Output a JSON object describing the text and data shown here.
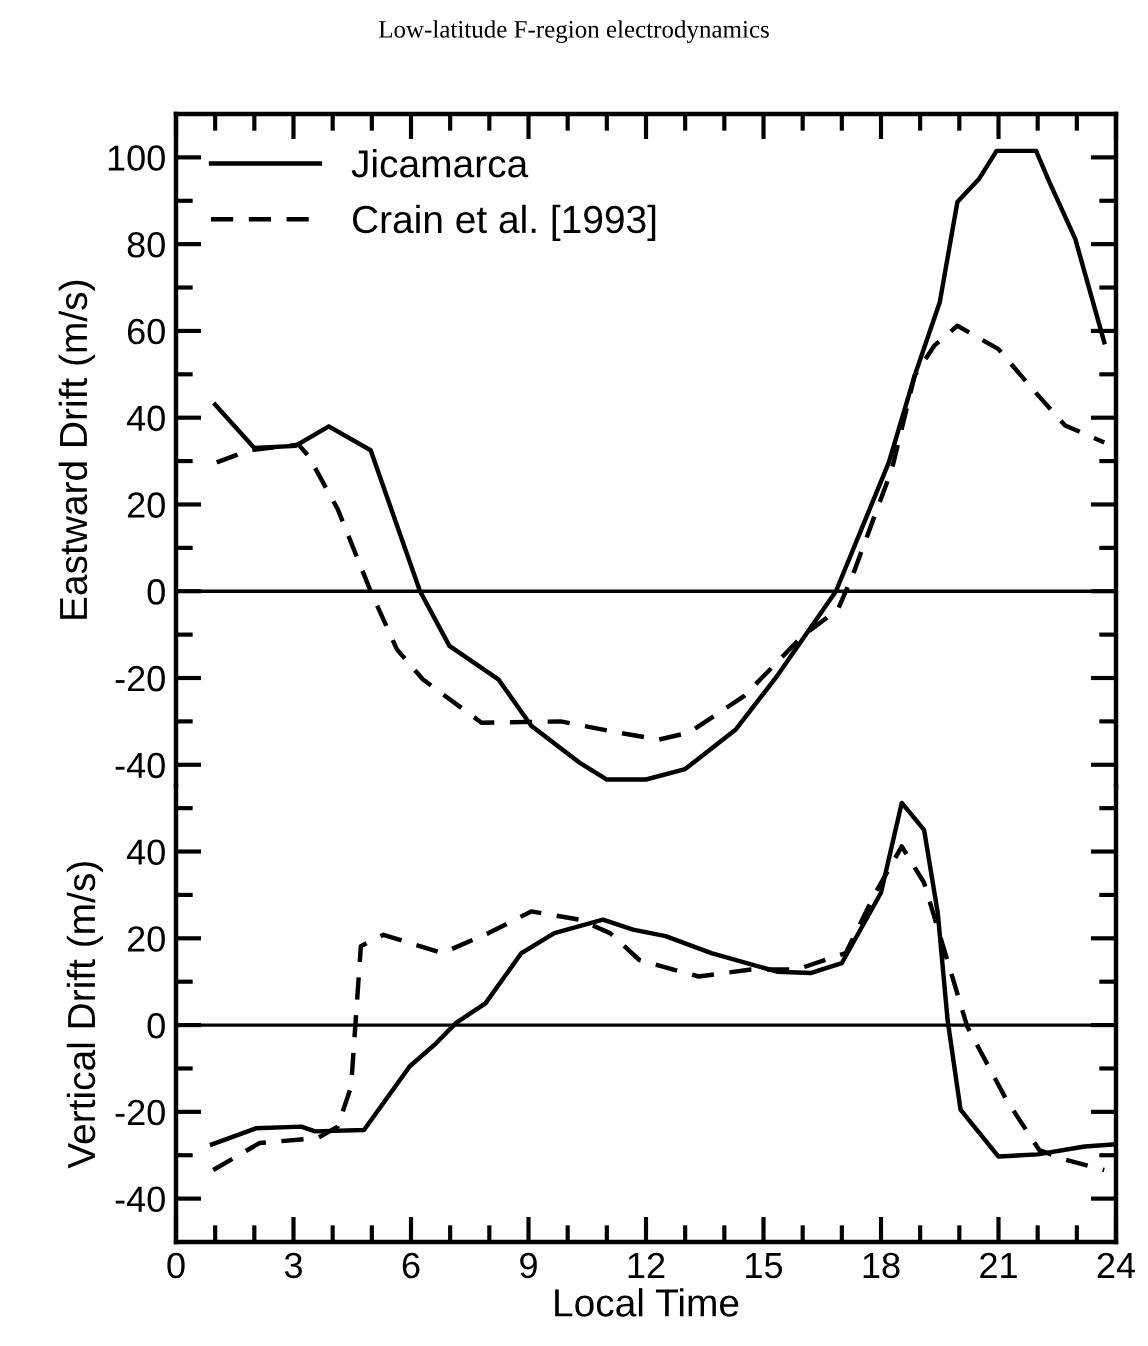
{
  "chart_data": [
    {
      "type": "line",
      "title": "Low-latitude F-region electrodynamics",
      "ylabel": "Eastward Drift (m/s)",
      "xlim": [
        0,
        24
      ],
      "xticks": [
        0,
        {
          "value": 1,
          "label": null
        },
        {
          "value": 2,
          "label": null
        },
        3,
        {
          "value": 4,
          "label": null
        },
        {
          "value": 5,
          "label": null
        },
        6,
        {
          "value": 7,
          "label": null
        },
        {
          "value": 8,
          "label": null
        },
        9,
        {
          "value": 10,
          "label": null
        },
        {
          "value": 11,
          "label": null
        },
        12,
        {
          "value": 13,
          "label": null
        },
        {
          "value": 14,
          "label": null
        },
        15,
        {
          "value": 16,
          "label": null
        },
        {
          "value": 17,
          "label": null
        },
        18,
        {
          "value": 19,
          "label": null
        },
        {
          "value": 20,
          "label": null
        },
        21,
        {
          "value": 22,
          "label": null
        },
        {
          "value": 23,
          "label": null
        },
        24
      ],
      "ylim": [
        -45,
        110
      ],
      "yticks": [
        -40,
        {
          "value": -30,
          "label": null
        },
        -20,
        {
          "value": -10,
          "label": null
        },
        0,
        {
          "value": 10,
          "label": null
        },
        20,
        {
          "value": 30,
          "label": null
        },
        40,
        {
          "value": 50,
          "label": null
        },
        60,
        {
          "value": 70,
          "label": null
        },
        80,
        {
          "value": 90,
          "label": null
        },
        100
      ],
      "tick_labels": "y",
      "grid": false,
      "legend": "top left",
      "ref_lines": [
        {
          "axis": "y",
          "value": 0,
          "color": "#000000"
        }
      ],
      "series": [
        {
          "name": "Jicamarca",
          "color": "#000000",
          "line_style": "solid",
          "x": [
            1,
            2,
            3.05,
            3.9,
            4.97,
            6.23,
            6.98,
            8.23,
            9.07,
            10.3,
            11.0,
            12.0,
            13.0,
            14.3,
            15.35,
            16.85,
            18.2,
            18.86,
            19.5,
            19.95,
            20.5,
            20.95,
            21.96,
            22.3,
            22.96,
            23.7
          ],
          "values": [
            43,
            33,
            33.5,
            38,
            32.5,
            0,
            -12.6,
            -20.3,
            -31,
            -39.5,
            -43.4,
            -43.4,
            -41,
            -31.8,
            -19.5,
            0,
            29.7,
            49.7,
            66.6,
            89.7,
            95,
            101.5,
            101.5,
            94.3,
            81.2,
            57.4
          ]
        },
        {
          "name": "Crain et al. [1993]",
          "color": "#000000",
          "line_style": "dashed",
          "x": [
            1.04,
            1.87,
            3.13,
            3.38,
            4.13,
            4.97,
            5.64,
            6.3,
            7.8,
            9.82,
            11.3,
            12.33,
            13.1,
            14.5,
            16.0,
            16.9,
            17.27,
            18.28,
            18.86,
            19.36,
            19.95,
            21.0,
            21.87,
            22.7,
            23.7
          ],
          "values": [
            29.7,
            32.5,
            33.8,
            31.2,
            18.9,
            0,
            -13.4,
            -20.3,
            -30.3,
            -30,
            -32.6,
            -34.2,
            -32.6,
            -24.2,
            -10.3,
            -4.2,
            3.5,
            28.2,
            49.7,
            56.6,
            61.2,
            55.8,
            46.6,
            38.2,
            34.3
          ]
        }
      ]
    },
    {
      "type": "line",
      "ylabel": "Vertical Drift (m/s)",
      "xlabel": "Local Time",
      "xlim": [
        0,
        24
      ],
      "xticks": [
        0,
        {
          "value": 1,
          "label": null
        },
        {
          "value": 2,
          "label": null
        },
        3,
        {
          "value": 4,
          "label": null
        },
        {
          "value": 5,
          "label": null
        },
        6,
        {
          "value": 7,
          "label": null
        },
        {
          "value": 8,
          "label": null
        },
        9,
        {
          "value": 10,
          "label": null
        },
        {
          "value": 11,
          "label": null
        },
        12,
        {
          "value": 13,
          "label": null
        },
        {
          "value": 14,
          "label": null
        },
        15,
        {
          "value": 16,
          "label": null
        },
        {
          "value": 17,
          "label": null
        },
        18,
        {
          "value": 19,
          "label": null
        },
        {
          "value": 20,
          "label": null
        },
        21,
        {
          "value": 22,
          "label": null
        },
        {
          "value": 23,
          "label": null
        },
        24
      ],
      "ylim": [
        -50,
        55
      ],
      "yticks": [
        -40,
        {
          "value": -30,
          "label": null
        },
        -20,
        {
          "value": -10,
          "label": null
        },
        0,
        {
          "value": 10,
          "label": null
        },
        20,
        {
          "value": 30,
          "label": null
        },
        40,
        {
          "value": 50,
          "label": null
        }
      ],
      "grid": false,
      "ref_lines": [
        {
          "axis": "y",
          "value": 0,
          "color": "#000000"
        }
      ],
      "series": [
        {
          "color": "#000000",
          "line_style": "solid",
          "x": [
            0.92,
            2.04,
            3.2,
            3.55,
            4.8,
            5.97,
            6.64,
            7.15,
            7.9,
            8.82,
            9.66,
            10.9,
            11.67,
            12.5,
            13.67,
            15.35,
            16.2,
            17.0,
            18.0,
            18.53,
            19.1,
            19.45,
            19.7,
            20.03,
            21.0,
            22.0,
            23.2,
            23.95
          ],
          "values": [
            -27.5,
            -23.8,
            -23.4,
            -24.5,
            -24.2,
            -9.5,
            -4.2,
            0.5,
            5,
            16.6,
            21.2,
            24.3,
            22,
            20.5,
            16.6,
            12.3,
            12,
            14.3,
            30.5,
            51.2,
            45,
            25.8,
            1.2,
            -19.5,
            -30.3,
            -29.8,
            -28,
            -27.5
          ]
        },
        {
          "color": "#000000",
          "line_style": "dashed",
          "x": [
            0.95,
            2.13,
            3.63,
            4.13,
            4.47,
            4.72,
            5.3,
            6.8,
            7.98,
            9.07,
            10.3,
            11.08,
            11.83,
            13.34,
            14.68,
            15.85,
            17.1,
            17.86,
            18.53,
            19.1,
            20.2,
            21.2,
            22.04,
            22.7,
            23.7
          ],
          "values": [
            -33.4,
            -27.2,
            -26,
            -23.4,
            -14.2,
            18.2,
            20.8,
            16.6,
            21.2,
            26.2,
            24.3,
            21.2,
            15,
            11.2,
            12.8,
            12.8,
            16.6,
            30.5,
            41.2,
            32.8,
            -0.3,
            -17.2,
            -28.8,
            -31,
            -33.4
          ]
        }
      ]
    }
  ]
}
